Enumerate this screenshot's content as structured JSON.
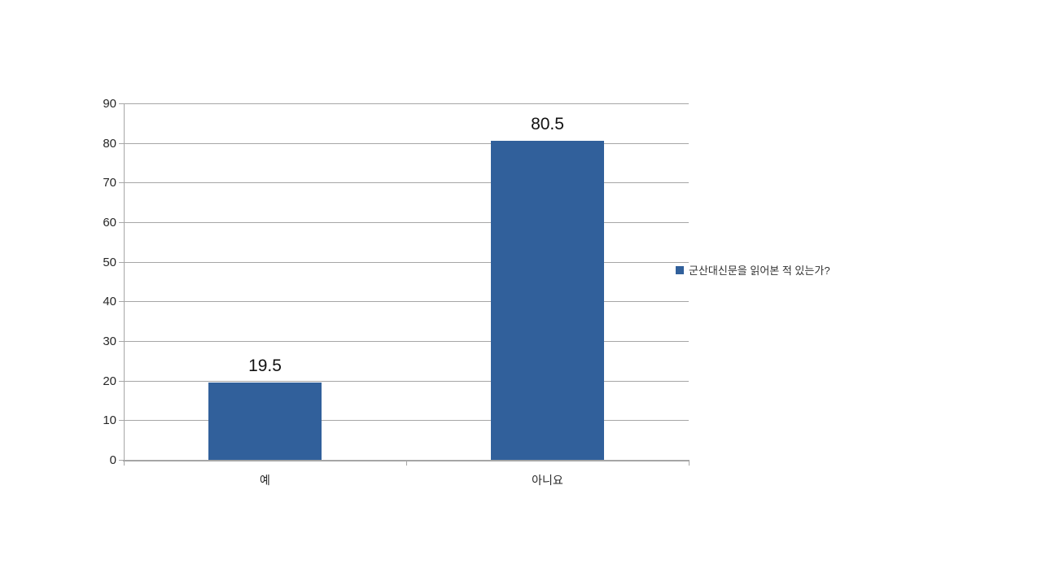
{
  "chart_data": {
    "type": "bar",
    "title": "",
    "categories": [
      "예",
      "아니요"
    ],
    "values": [
      19.5,
      80.5
    ],
    "data_labels": [
      "19.5",
      "80.5"
    ],
    "series": [
      {
        "name": "군산대신문을 읽어본 적 있는가?",
        "values": [
          19.5,
          80.5
        ]
      }
    ],
    "xlabel": "",
    "ylabel": "",
    "y_ticks": [
      0,
      10,
      20,
      30,
      40,
      50,
      60,
      70,
      80,
      90
    ],
    "ylim": [
      0,
      90
    ],
    "grid": true,
    "legend_position": "right",
    "colors": {
      "bar": "#31609b",
      "gridline": "#a6a6a6",
      "axis": "#a6a6a6",
      "label_text": "#262626",
      "value_text": "#111111"
    }
  },
  "legend": {
    "label": "군산대신문을 읽어본 적 있는가?"
  }
}
